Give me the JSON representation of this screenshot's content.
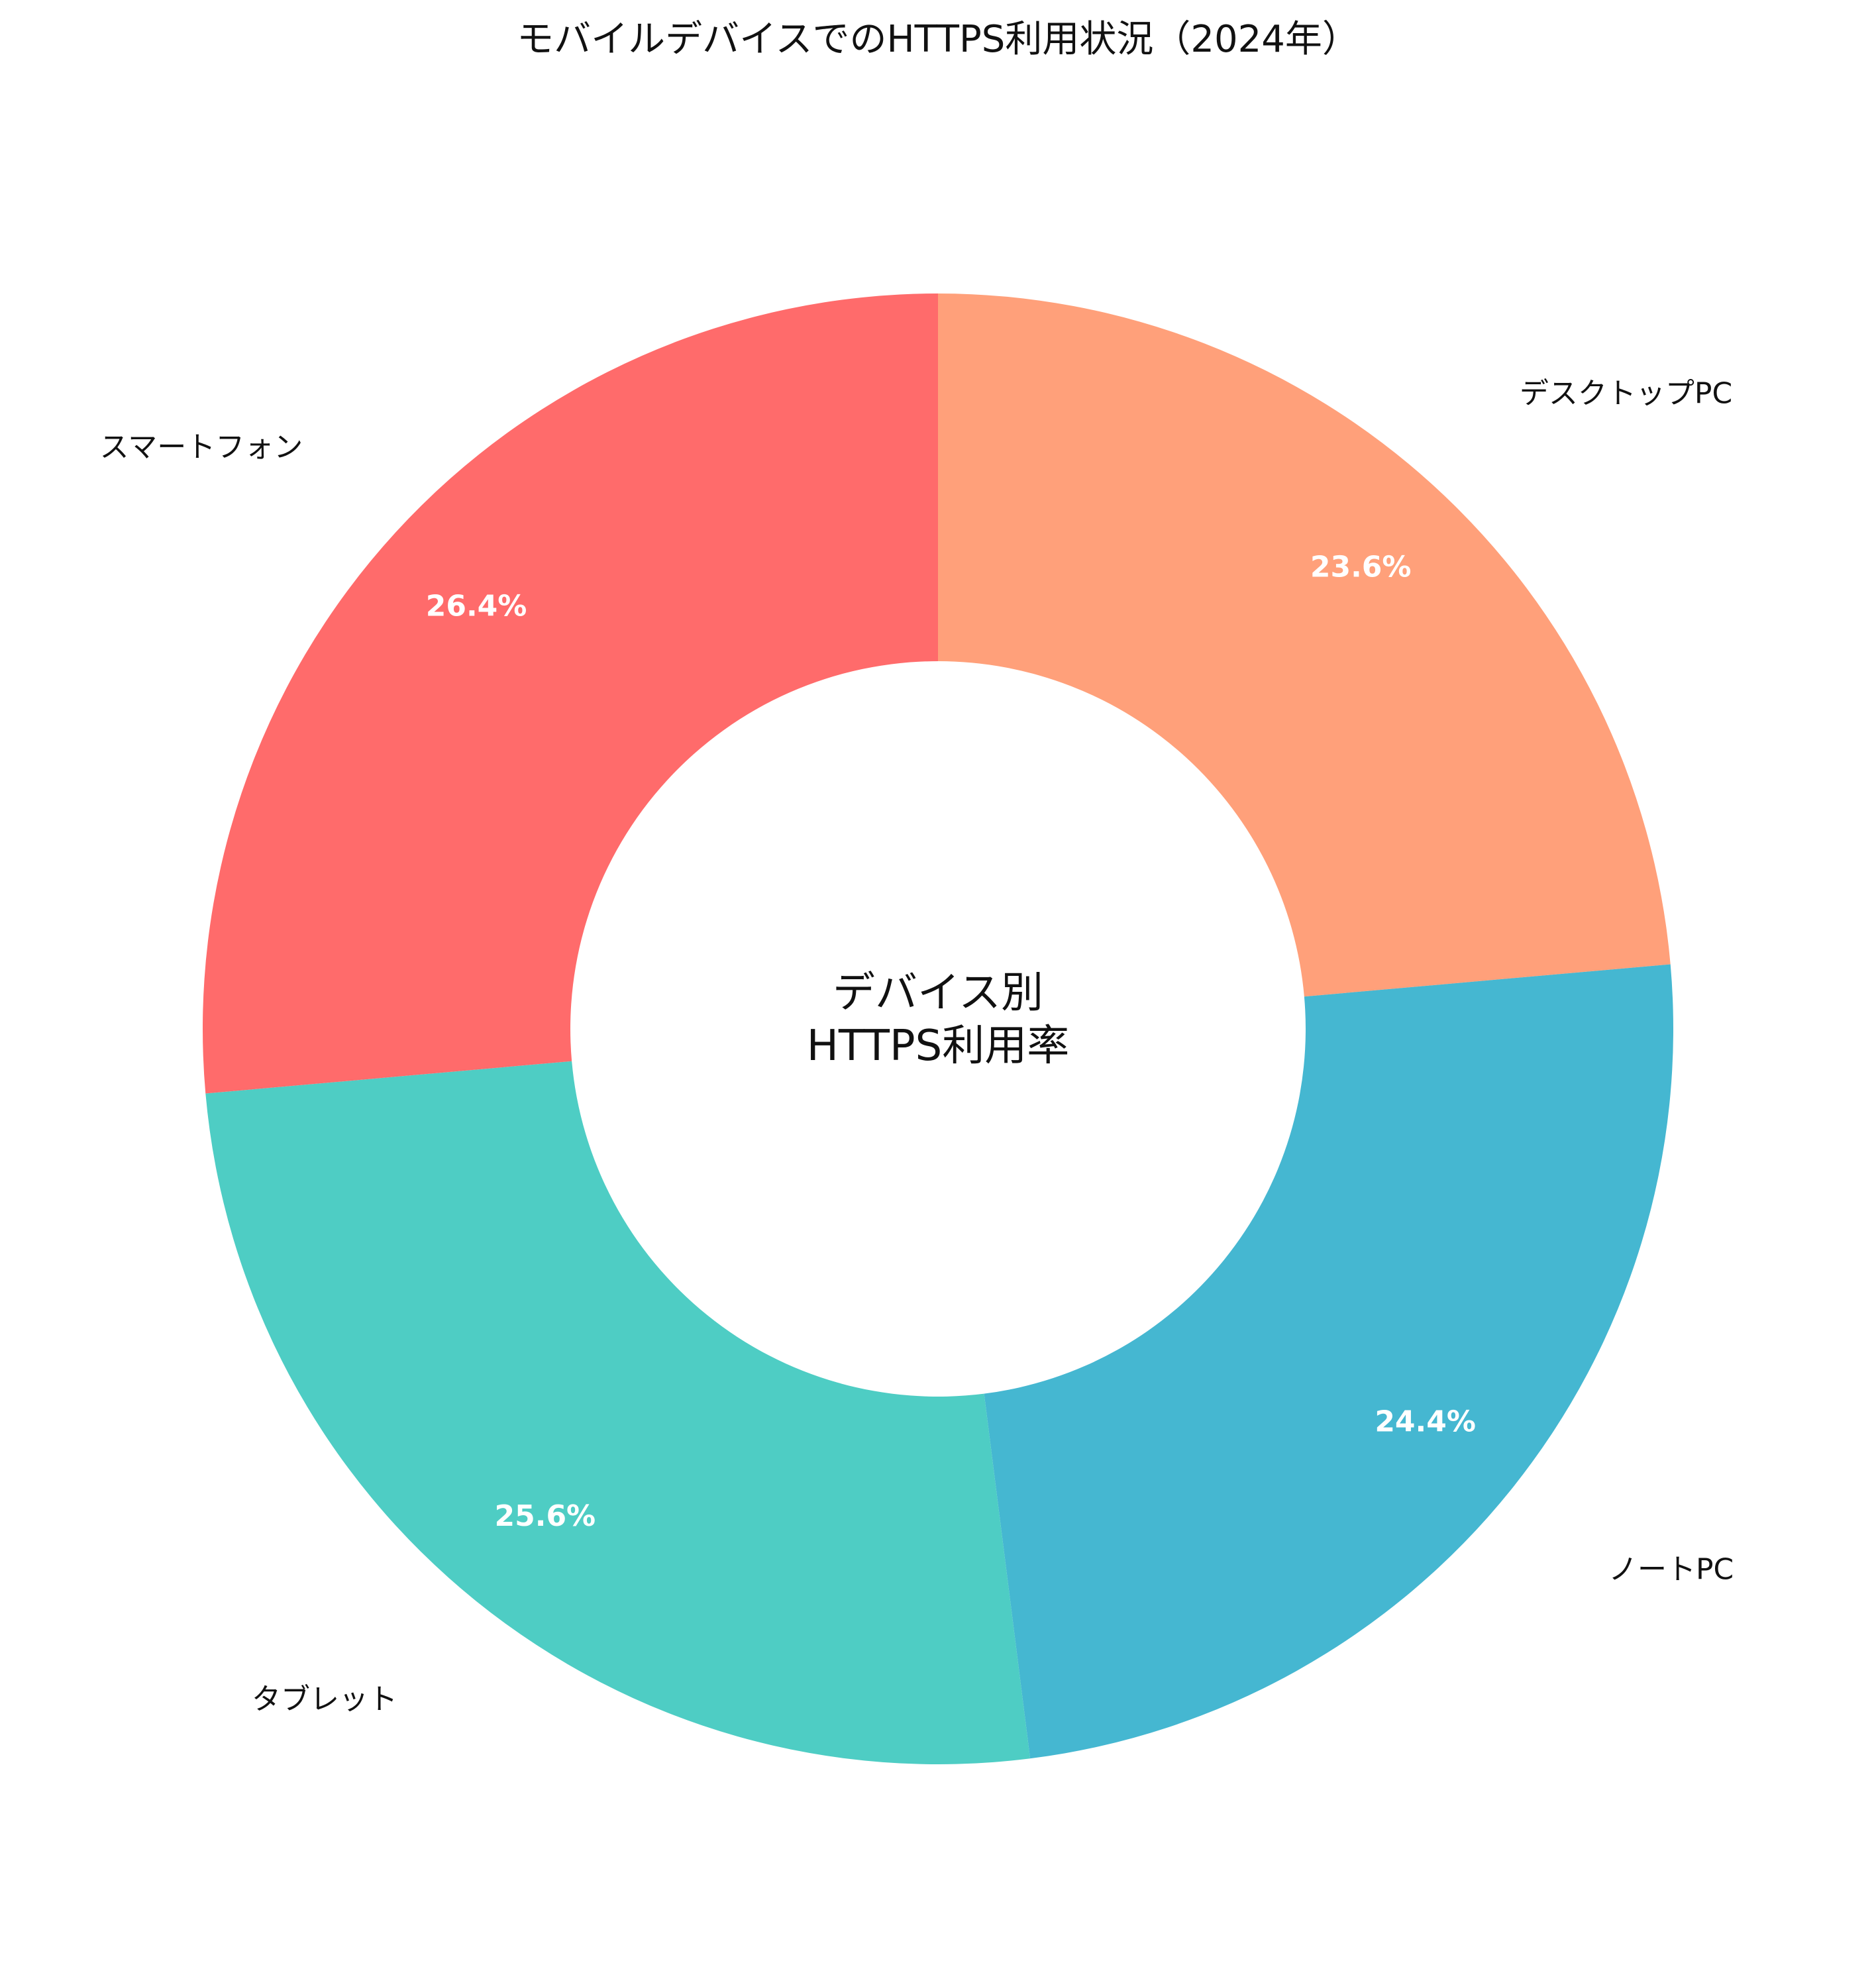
{
  "chart_data": {
    "type": "pie",
    "variant": "donut",
    "title": "モバイルデバイスでのHTTPS利用状況（2024年）",
    "center_label": [
      "デバイス別",
      "HTTPS利用率"
    ],
    "start": "top",
    "direction": "clockwise",
    "slices": [
      {
        "label": "デスクトップPC",
        "value": 23.6,
        "pct_label": "23.6%",
        "color": "#FFA07A"
      },
      {
        "label": "ノートPC",
        "value": 24.4,
        "pct_label": "24.4%",
        "color": "#45B7D1"
      },
      {
        "label": "タブレット",
        "value": 25.6,
        "pct_label": "25.6%",
        "color": "#4ECDC4"
      },
      {
        "label": "スマートフォン",
        "value": 26.4,
        "pct_label": "26.4%",
        "color": "#FF6B6B"
      }
    ]
  }
}
